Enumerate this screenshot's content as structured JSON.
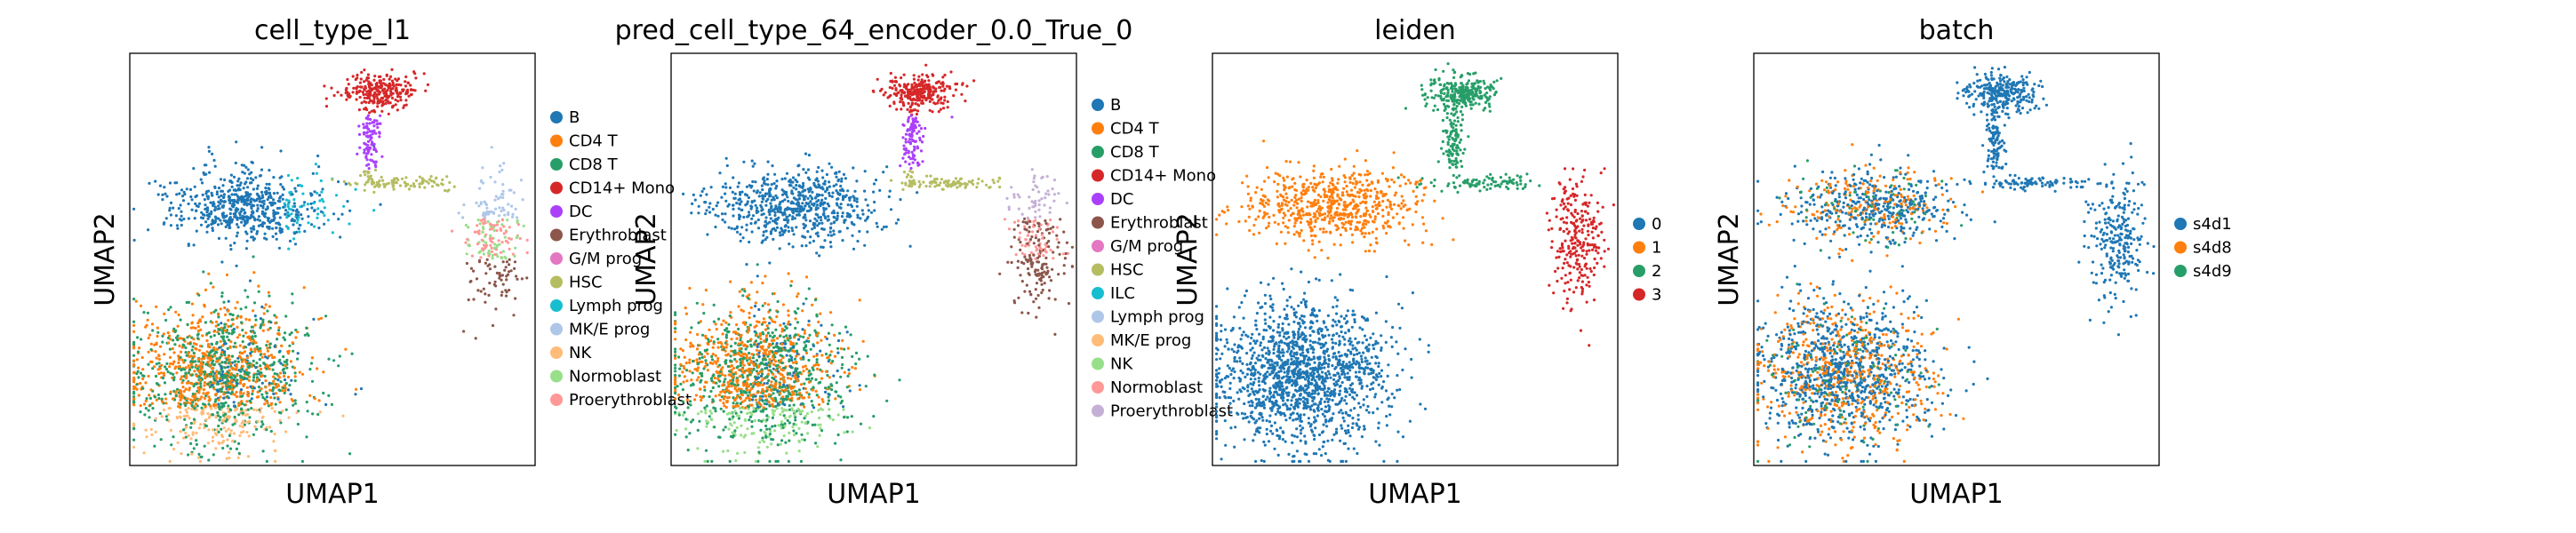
{
  "chart_data": [
    {
      "type": "scatter",
      "title": "cell_type_l1",
      "xlabel": "UMAP1",
      "ylabel": "UMAP2",
      "grid": false,
      "legend_placement": "right",
      "legend": [
        {
          "label": "B",
          "color": "#1f77b4"
        },
        {
          "label": "CD4 T",
          "color": "#ff7f0e"
        },
        {
          "label": "CD8 T",
          "color": "#279e68"
        },
        {
          "label": "CD14+ Mono",
          "color": "#d62728"
        },
        {
          "label": "DC",
          "color": "#aa40fc"
        },
        {
          "label": "Erythroblast",
          "color": "#8c564b"
        },
        {
          "label": "G/M prog",
          "color": "#e377c2"
        },
        {
          "label": "HSC",
          "color": "#b5bd61"
        },
        {
          "label": "Lymph prog",
          "color": "#17becf"
        },
        {
          "label": "MK/E prog",
          "color": "#aec7e8"
        },
        {
          "label": "NK",
          "color": "#ffbb78"
        },
        {
          "label": "Normoblast",
          "color": "#98df8a"
        },
        {
          "label": "Proerythroblast",
          "color": "#ff9896"
        }
      ]
    },
    {
      "type": "scatter",
      "title": "pred_cell_type_64_encoder_0.0_True_0",
      "xlabel": "UMAP1",
      "ylabel": "UMAP2",
      "grid": false,
      "legend_placement": "right",
      "legend": [
        {
          "label": "B",
          "color": "#1f77b4"
        },
        {
          "label": "CD4 T",
          "color": "#ff7f0e"
        },
        {
          "label": "CD8 T",
          "color": "#279e68"
        },
        {
          "label": "CD14+ Mono",
          "color": "#d62728"
        },
        {
          "label": "DC",
          "color": "#aa40fc"
        },
        {
          "label": "Erythroblast",
          "color": "#8c564b"
        },
        {
          "label": "G/M prog",
          "color": "#e377c2"
        },
        {
          "label": "HSC",
          "color": "#b5bd61"
        },
        {
          "label": "ILC",
          "color": "#17becf"
        },
        {
          "label": "Lymph prog",
          "color": "#aec7e8"
        },
        {
          "label": "MK/E prog",
          "color": "#ffbb78"
        },
        {
          "label": "NK",
          "color": "#98df8a"
        },
        {
          "label": "Normoblast",
          "color": "#ff9896"
        },
        {
          "label": "Proerythroblast",
          "color": "#c5b0d5"
        }
      ]
    },
    {
      "type": "scatter",
      "title": "leiden",
      "xlabel": "UMAP1",
      "ylabel": "UMAP2",
      "grid": false,
      "legend_placement": "right",
      "legend": [
        {
          "label": "0",
          "color": "#1f77b4"
        },
        {
          "label": "1",
          "color": "#ff7f0e"
        },
        {
          "label": "2",
          "color": "#279e68"
        },
        {
          "label": "3",
          "color": "#d62728"
        }
      ]
    },
    {
      "type": "scatter",
      "title": "batch",
      "xlabel": "UMAP1",
      "ylabel": "UMAP2",
      "grid": false,
      "legend_placement": "right",
      "legend": [
        {
          "label": "s4d1",
          "color": "#1f77b4"
        },
        {
          "label": "s4d8",
          "color": "#ff7f0e"
        },
        {
          "label": "s4d9",
          "color": "#279e68"
        }
      ]
    }
  ]
}
